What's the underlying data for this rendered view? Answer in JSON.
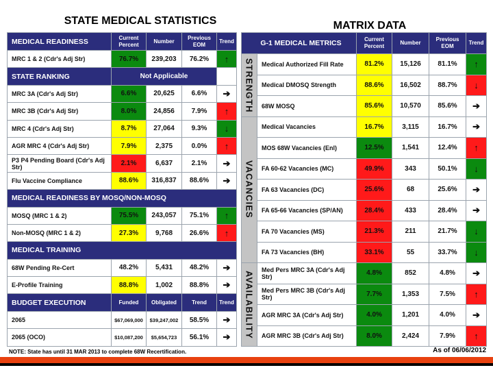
{
  "titles": {
    "left": "STATE MEDICAL STATISTICS",
    "right": "MATRIX DATA"
  },
  "colors": {
    "navy": "#2b2d7c",
    "green": "#0b8a0f",
    "yellow": "#ffff00",
    "red": "#ff1a1a",
    "orange": "#e8410f"
  },
  "left": {
    "sections": [
      {
        "title": "MEDICAL READINESS",
        "headers": [
          "Current Percent",
          "Number",
          "Previous EOM",
          "Trend"
        ],
        "rows": [
          {
            "label": "MRC 1 & 2 (Cdr's Adj Str)",
            "current": "76.7%",
            "current_color": "green",
            "number": "239,203",
            "previous": "76.2%",
            "trend": "up",
            "trend_color": "green"
          }
        ]
      },
      {
        "title": "STATE RANKING",
        "span_text": "Not Applicable",
        "rows": [
          {
            "label": "MRC 3A (Cdr's Adj Str)",
            "current": "6.6%",
            "current_color": "green",
            "number": "20,625",
            "previous": "6.6%",
            "trend": "right",
            "trend_color": ""
          },
          {
            "label": "MRC 3B (Cdr's Adj Str)",
            "current": "8.0%",
            "current_color": "green",
            "number": "24,856",
            "previous": "7.9%",
            "trend": "up",
            "trend_color": "red"
          },
          {
            "label": "MRC 4 (Cdr's Adj Str)",
            "current": "8.7%",
            "current_color": "yellow",
            "number": "27,064",
            "previous": "9.3%",
            "trend": "down",
            "trend_color": "green"
          },
          {
            "label": "AGR MRC 4 (Cdr's Adj Str)",
            "current": "7.9%",
            "current_color": "yellow",
            "number": "2,375",
            "previous": "0.0%",
            "trend": "up",
            "trend_color": "red"
          },
          {
            "label": "P3 P4 Pending Board (Cdr's Adj Str)",
            "current": "2.1%",
            "current_color": "red",
            "number": "6,637",
            "previous": "2.1%",
            "trend": "right",
            "trend_color": ""
          },
          {
            "label": "Flu Vaccine Compliance",
            "current": "88.6%",
            "current_color": "yellow",
            "number": "316,837",
            "previous": "88.6%",
            "trend": "right",
            "trend_color": ""
          }
        ]
      },
      {
        "title": "MEDICAL READINESS BY MOSQ/NON-MOSQ",
        "rows": [
          {
            "label": "MOSQ (MRC 1 & 2)",
            "current": "75.5%",
            "current_color": "green",
            "number": "243,057",
            "previous": "75.1%",
            "trend": "up",
            "trend_color": "green"
          },
          {
            "label": "Non-MOSQ (MRC 1 & 2)",
            "current": "27.3%",
            "current_color": "yellow",
            "number": "9,768",
            "previous": "26.6%",
            "trend": "up",
            "trend_color": "red"
          }
        ]
      },
      {
        "title": "MEDICAL TRAINING",
        "rows": [
          {
            "label": "68W Pending Re-Cert",
            "current": "48.2%",
            "current_color": "",
            "number": "5,431",
            "previous": "48.2%",
            "trend": "right",
            "trend_color": ""
          },
          {
            "label": "E-Profile Training",
            "current": "88.8%",
            "current_color": "yellow",
            "number": "1,002",
            "previous": "88.8%",
            "trend": "right",
            "trend_color": ""
          }
        ]
      },
      {
        "title": "BUDGET EXECUTION",
        "headers": [
          "Funded",
          "Obligated",
          "Trend",
          "Trend"
        ],
        "rows": [
          {
            "label": "2065",
            "current": "$67,069,000",
            "current_color": "",
            "number": "$39,247,002",
            "previous": "58.5%",
            "trend": "right",
            "trend_color": "",
            "small": true
          },
          {
            "label": "2065 (OCO)",
            "current": "$10,087,200",
            "current_color": "",
            "number": "$5,654,723",
            "previous": "56.1%",
            "trend": "right",
            "trend_color": "",
            "small": true
          }
        ]
      }
    ],
    "note": "NOTE: State has until 31 MAR 2013 to complete 68W Recertification."
  },
  "right": {
    "title": "G-1 MEDICAL METRICS",
    "headers": [
      "Current Percent",
      "Number",
      "Previous EOM",
      "Trend"
    ],
    "groups": [
      {
        "label": "STRENGTH",
        "rows": [
          {
            "label": "Medical Authorized Fill Rate",
            "current": "81.2%",
            "current_color": "yellow",
            "number": "15,126",
            "previous": "81.1%",
            "trend": "up",
            "trend_color": "green"
          },
          {
            "label": "Medical DMOSQ Strength",
            "current": "88.6%",
            "current_color": "yellow",
            "number": "16,502",
            "previous": "88.7%",
            "trend": "down",
            "trend_color": "red"
          },
          {
            "label": "68W MOSQ",
            "current": "85.6%",
            "current_color": "yellow",
            "number": "10,570",
            "previous": "85.6%",
            "trend": "right",
            "trend_color": ""
          }
        ]
      },
      {
        "label": "VACANCIES",
        "rows": [
          {
            "label": "Medical Vacancies",
            "current": "16.7%",
            "current_color": "yellow",
            "number": "3,115",
            "previous": "16.7%",
            "trend": "right",
            "trend_color": ""
          },
          {
            "label": "MOS 68W Vacancies (Enl)",
            "current": "12.5%",
            "current_color": "green",
            "number": "1,541",
            "previous": "12.4%",
            "trend": "up",
            "trend_color": "red"
          },
          {
            "label": "FA 60-62 Vacancies (MC)",
            "current": "49.9%",
            "current_color": "red",
            "number": "343",
            "previous": "50.1%",
            "trend": "down",
            "trend_color": "green"
          },
          {
            "label": "FA 63 Vacancies (DC)",
            "current": "25.6%",
            "current_color": "red",
            "number": "68",
            "previous": "25.6%",
            "trend": "right",
            "trend_color": ""
          },
          {
            "label": "FA 65-66 Vacancies (SP/AN)",
            "current": "28.4%",
            "current_color": "red",
            "number": "433",
            "previous": "28.4%",
            "trend": "right",
            "trend_color": ""
          },
          {
            "label": "FA 70 Vacancies (MS)",
            "current": "21.3%",
            "current_color": "red",
            "number": "211",
            "previous": "21.7%",
            "trend": "down",
            "trend_color": "green"
          },
          {
            "label": "FA 73 Vacancies (BH)",
            "current": "33.1%",
            "current_color": "red",
            "number": "55",
            "previous": "33.7%",
            "trend": "down",
            "trend_color": "green"
          }
        ]
      },
      {
        "label": "AVAILABILITY",
        "rows": [
          {
            "label": "Med Pers MRC 3A (Cdr's Adj Str)",
            "current": "4.8%",
            "current_color": "green",
            "number": "852",
            "previous": "4.8%",
            "trend": "right",
            "trend_color": ""
          },
          {
            "label": "Med Pers MRC 3B (Cdr's Adj Str)",
            "current": "7.7%",
            "current_color": "green",
            "number": "1,353",
            "previous": "7.5%",
            "trend": "up",
            "trend_color": "red"
          },
          {
            "label": "AGR MRC 3A (Cdr's Adj Str)",
            "current": "4.0%",
            "current_color": "green",
            "number": "1,201",
            "previous": "4.0%",
            "trend": "right",
            "trend_color": ""
          },
          {
            "label": "AGR MRC 3B (Cdr's Adj Str)",
            "current": "8.0%",
            "current_color": "green",
            "number": "2,424",
            "previous": "7.9%",
            "trend": "up",
            "trend_color": "red"
          }
        ]
      }
    ],
    "as_of": "As of 06/06/2012"
  },
  "arrows": {
    "up": "🡑",
    "down": "🡓",
    "right": "🡒"
  }
}
